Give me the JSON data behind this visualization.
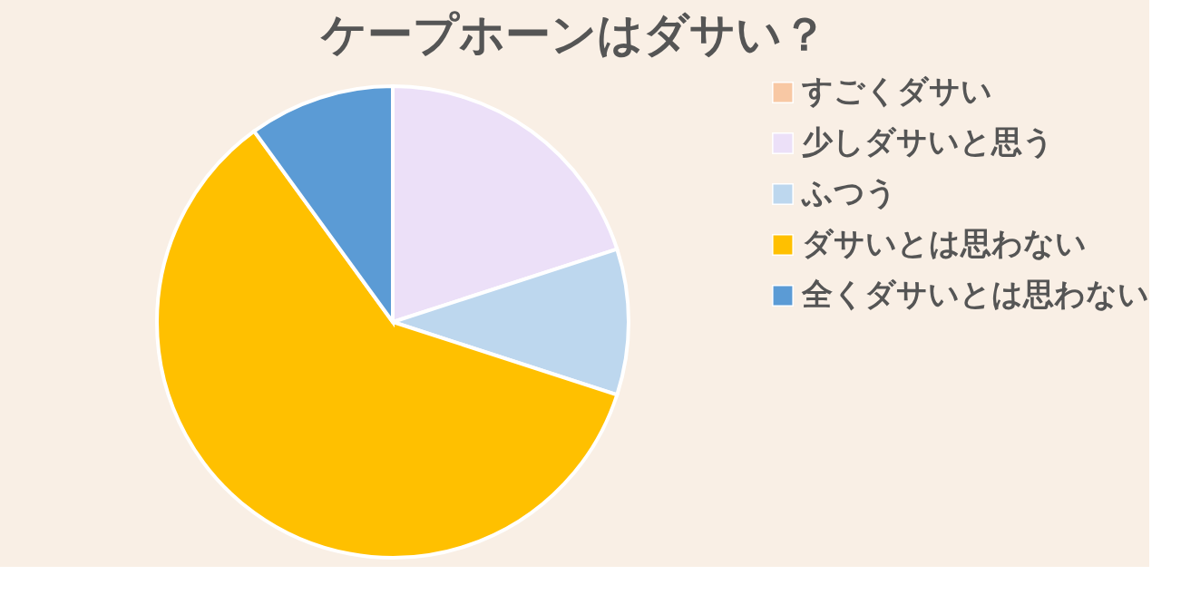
{
  "chart_data": {
    "type": "pie",
    "title": "ケープホーンはダサい？",
    "categories": [
      "すごくダサい",
      "少しダサいと思う",
      "ふつう",
      "ダサいとは思わない",
      "全くダサいとは思わない"
    ],
    "values": [
      0,
      20,
      10,
      60,
      10
    ],
    "colors": [
      "#f8c8a4",
      "#ece0f8",
      "#bdd7ee",
      "#ffc000",
      "#5b9bd5"
    ],
    "legend": "right"
  }
}
